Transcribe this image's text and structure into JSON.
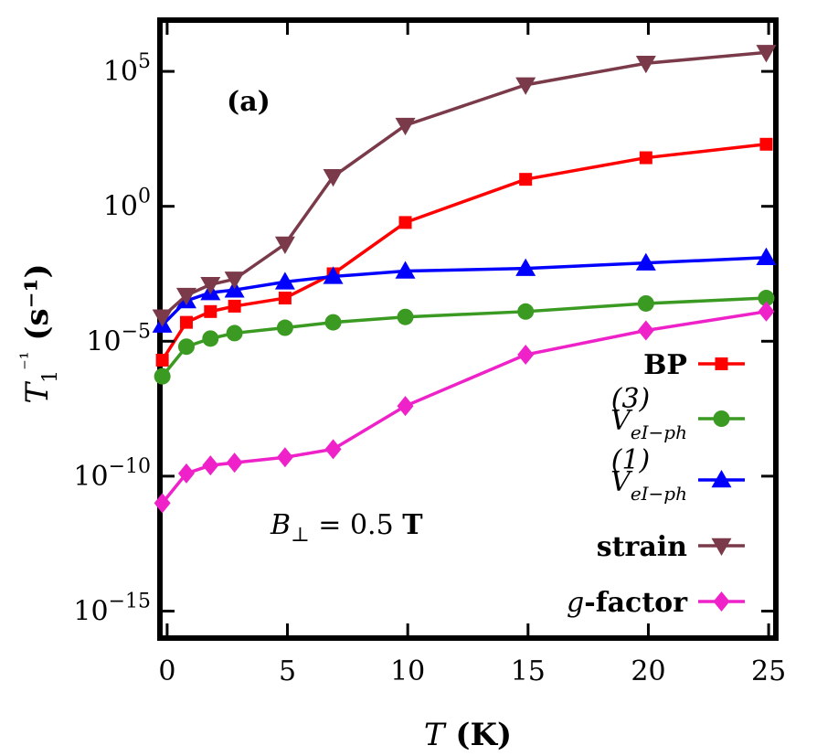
{
  "chart_data": {
    "type": "line",
    "panel_label": "(a)",
    "annotation": "B⊥ = 0.5 T",
    "xlabel": "T (K)",
    "ylabel": "T1⁻¹ (s⁻¹)",
    "xlim": [
      -0.3,
      25.3
    ],
    "ylim_log10": [
      -16.0,
      6.9
    ],
    "log_y": true,
    "x_ticks": [
      0,
      5,
      10,
      15,
      20,
      25
    ],
    "y_ticks": [
      {
        "exp": 5,
        "label_base": "10",
        "label_exp": "5"
      },
      {
        "exp": 0,
        "label_base": "10",
        "label_exp": "0"
      },
      {
        "exp": -5,
        "label_base": "10",
        "label_exp": "−5"
      },
      {
        "exp": -10,
        "label_base": "10",
        "label_exp": "−10"
      },
      {
        "exp": -15,
        "label_base": "10",
        "label_exp": "−15"
      }
    ],
    "legend_position": "right",
    "series": [
      {
        "name": "BP",
        "legend_main": "BP",
        "legend_sub": "",
        "legend_sup": "",
        "color": "#ff0000",
        "marker": "square",
        "x": [
          -0.2,
          0.8,
          1.8,
          2.8,
          4.9,
          6.9,
          9.9,
          14.9,
          19.9,
          24.9
        ],
        "log10_y": [
          -5.7,
          -4.3,
          -3.9,
          -3.7,
          -3.4,
          -2.5,
          -0.6,
          1.0,
          1.8,
          2.3
        ]
      },
      {
        "name": "V(3) eI-ph",
        "legend_main": "V",
        "legend_sub": "eI−ph",
        "legend_sup": "(3)",
        "color": "#3a9a22",
        "marker": "circle",
        "x": [
          -0.2,
          0.8,
          1.8,
          2.8,
          4.9,
          6.9,
          9.9,
          14.9,
          19.9,
          24.9
        ],
        "log10_y": [
          -6.3,
          -5.2,
          -4.9,
          -4.7,
          -4.5,
          -4.3,
          -4.1,
          -3.9,
          -3.6,
          -3.4
        ]
      },
      {
        "name": "V(1) eI-ph",
        "legend_main": "V",
        "legend_sub": "eI−ph",
        "legend_sup": "(1)",
        "color": "#0000ff",
        "marker": "triangle-up",
        "x": [
          -0.2,
          0.8,
          1.8,
          2.8,
          4.9,
          6.9,
          9.9,
          14.9,
          19.9,
          24.9
        ],
        "log10_y": [
          -4.4,
          -3.5,
          -3.2,
          -3.1,
          -2.8,
          -2.6,
          -2.4,
          -2.3,
          -2.1,
          -1.9
        ]
      },
      {
        "name": "strain",
        "legend_main": "strain",
        "legend_sub": "",
        "legend_sup": "",
        "color": "#7a3a4a",
        "marker": "triangle-down",
        "x": [
          -0.2,
          0.8,
          1.8,
          2.8,
          4.9,
          6.9,
          9.9,
          14.9,
          19.9,
          24.9
        ],
        "log10_y": [
          -4.1,
          -3.3,
          -2.9,
          -2.7,
          -1.4,
          1.1,
          3.0,
          4.5,
          5.3,
          5.7
        ]
      },
      {
        "name": "g-factor",
        "legend_main": "g",
        "legend_sub": "",
        "legend_sup": "",
        "legend_suffix": "-factor",
        "color": "#ee22c8",
        "marker": "diamond",
        "x": [
          -0.2,
          0.8,
          1.8,
          2.8,
          4.9,
          6.9,
          9.9,
          14.9,
          19.9,
          24.9
        ],
        "log10_y": [
          -11.0,
          -9.9,
          -9.6,
          -9.5,
          -9.3,
          -9.0,
          -7.4,
          -5.5,
          -4.6,
          -3.9
        ]
      }
    ]
  }
}
